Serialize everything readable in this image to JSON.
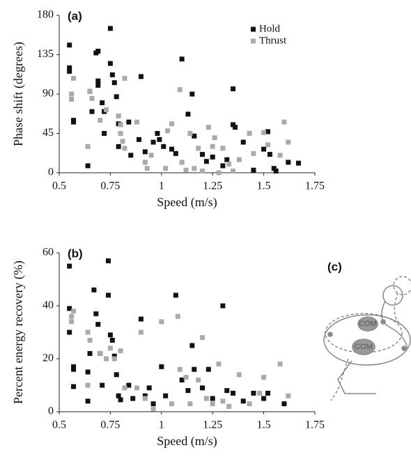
{
  "chart_data": [
    {
      "type": "scatter",
      "panel_label": "(a)",
      "x_label": "Speed (m/s)",
      "y_label": "Phase shift (degrees)",
      "xlim": [
        0.5,
        1.75
      ],
      "xticks": [
        0.5,
        0.75,
        1,
        1.25,
        1.5,
        1.75
      ],
      "ylim": [
        0,
        180
      ],
      "yticks": [
        0,
        45,
        90,
        135,
        180
      ],
      "legend": "upper right",
      "series": [
        {
          "name": "Hold",
          "color": "#111111",
          "x": [
            0.55,
            0.55,
            0.55,
            0.57,
            0.57,
            0.64,
            0.65,
            0.66,
            0.68,
            0.69,
            0.69,
            0.69,
            0.71,
            0.72,
            0.72,
            0.75,
            0.75,
            0.76,
            0.77,
            0.78,
            0.79,
            0.79,
            0.84,
            0.85,
            0.89,
            0.9,
            0.92,
            0.96,
            0.98,
            0.99,
            1.01,
            1.05,
            1.07,
            1.1,
            1.13,
            1.15,
            1.16,
            1.2,
            1.22,
            1.25,
            1.3,
            1.32,
            1.35,
            1.35,
            1.36,
            1.4,
            1.45,
            1.5,
            1.52,
            1.53,
            1.55,
            1.56,
            1.62,
            1.67
          ],
          "values": [
            146,
            120,
            116,
            60,
            58,
            8,
            93,
            70,
            137,
            139,
            105,
            100,
            80,
            70,
            45,
            165,
            125,
            112,
            103,
            87,
            56,
            30,
            58,
            20,
            38,
            110,
            24,
            35,
            45,
            38,
            30,
            27,
            22,
            130,
            67,
            90,
            42,
            21,
            13,
            18,
            8,
            15,
            96,
            55,
            52,
            35,
            3,
            27,
            47,
            21,
            5,
            2,
            12,
            11
          ]
        },
        {
          "name": "Thrust",
          "color": "#aaaaaa",
          "x": [
            0.57,
            0.56,
            0.56,
            0.64,
            0.65,
            0.66,
            0.7,
            0.73,
            0.79,
            0.8,
            0.8,
            0.81,
            0.82,
            0.82,
            0.88,
            0.92,
            0.93,
            0.95,
            1.02,
            1.03,
            1.05,
            1.09,
            1.1,
            1.12,
            1.14,
            1.16,
            1.18,
            1.2,
            1.23,
            1.25,
            1.26,
            1.28,
            1.3,
            1.33,
            1.35,
            1.38,
            1.43,
            1.45,
            1.5,
            1.52,
            1.6,
            1.62,
            1.58
          ],
          "values": [
            108,
            90,
            84,
            30,
            93,
            85,
            60,
            72,
            65,
            55,
            45,
            36,
            28,
            108,
            58,
            12,
            5,
            20,
            5,
            48,
            56,
            95,
            12,
            3,
            45,
            5,
            28,
            2,
            52,
            30,
            40,
            0,
            28,
            10,
            2,
            15,
            45,
            22,
            46,
            32,
            58,
            35,
            20
          ]
        }
      ]
    },
    {
      "type": "scatter",
      "panel_label": "(b)",
      "x_label": "Speed (m/s)",
      "y_label": "Percent energy recovery (%)",
      "xlim": [
        0.5,
        1.75
      ],
      "xticks": [
        0.5,
        0.75,
        1,
        1.25,
        1.5,
        1.75
      ],
      "ylim": [
        0,
        60
      ],
      "yticks": [
        0,
        20,
        40,
        60
      ],
      "series": [
        {
          "color": "#111111",
          "x": [
            0.55,
            0.55,
            0.55,
            0.57,
            0.57,
            0.57,
            0.64,
            0.64,
            0.65,
            0.67,
            0.68,
            0.69,
            0.7,
            0.71,
            0.74,
            0.74,
            0.75,
            0.76,
            0.77,
            0.78,
            0.79,
            0.8,
            0.84,
            0.86,
            0.9,
            0.92,
            0.94,
            0.96,
            1.0,
            1.02,
            1.07,
            1.1,
            1.13,
            1.15,
            1.16,
            1.2,
            1.23,
            1.25,
            1.3,
            1.32,
            1.35,
            1.4,
            1.45,
            1.5,
            1.52,
            1.6
          ],
          "values": [
            55,
            39,
            30,
            17,
            16,
            9.5,
            4,
            15,
            22,
            46,
            37,
            33,
            22,
            10,
            57,
            44,
            29,
            27,
            21,
            14,
            6,
            4.5,
            10,
            5,
            35,
            6,
            9,
            3,
            17,
            6,
            44,
            12,
            8,
            25,
            16,
            9,
            16,
            5,
            40,
            8,
            7,
            4,
            7,
            5,
            7,
            3
          ]
        },
        {
          "color": "#aaaaaa",
          "x": [
            0.57,
            0.56,
            0.56,
            0.64,
            0.64,
            0.65,
            0.7,
            0.73,
            0.75,
            0.77,
            0.8,
            0.82,
            0.88,
            0.9,
            0.92,
            0.96,
            1.0,
            1.05,
            1.08,
            1.09,
            1.12,
            1.14,
            1.18,
            1.2,
            1.22,
            1.25,
            1.28,
            1.3,
            1.33,
            1.38,
            1.43,
            1.48,
            1.5,
            1.58,
            1.62
          ],
          "values": [
            38,
            36,
            34,
            30,
            10,
            27,
            22,
            20,
            24,
            20,
            23,
            9,
            9,
            30,
            5,
            1,
            34,
            3,
            36,
            16,
            13,
            3,
            12,
            28,
            5,
            3,
            18,
            4,
            2,
            14,
            3,
            7,
            13,
            18,
            6
          ]
        }
      ]
    }
  ],
  "diagram": {
    "label": "(c)",
    "nodes": [
      {
        "label": "COM"
      },
      {
        "label": "COM"
      }
    ]
  }
}
